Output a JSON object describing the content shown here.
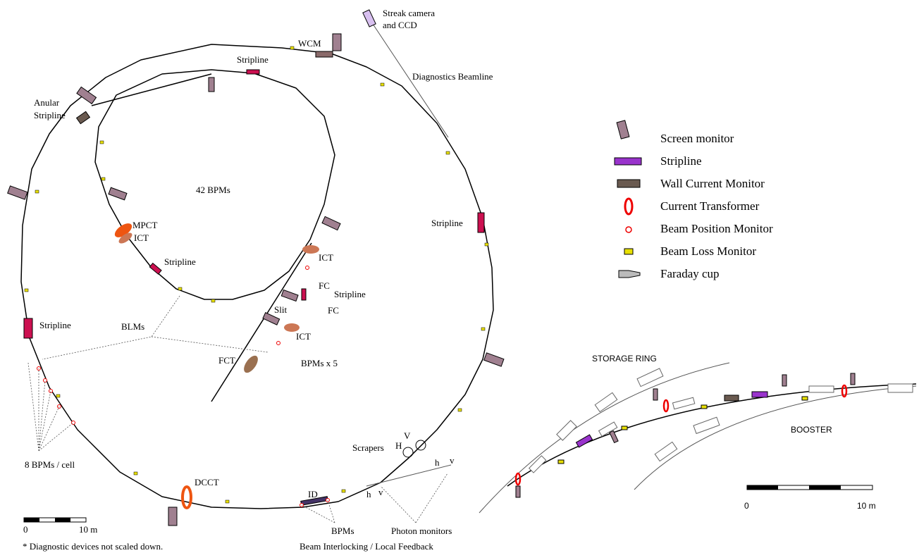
{
  "labels": [
    "Streak camera",
    "and CCD",
    "WCM",
    "Stripline",
    "Diagnostics Beamline",
    "Anular",
    "Stripline",
    "42 BPMs",
    "MPCT",
    "ICT",
    "Stripline",
    "Stripline",
    "ICT",
    "FC",
    "Stripline",
    "FC",
    "Slit",
    "ICT",
    "BLMs",
    "Stripline",
    "FCT",
    "BPMs x 5",
    "Scrapers",
    "V",
    "H",
    "h",
    "v",
    "h",
    "v",
    "8 BPMs / cell",
    "DCCT",
    "ID",
    "BPMs",
    "Photon monitors",
    "Beam Interlocking / Local Feedback"
  ],
  "legend": [
    "Screen monitor",
    "Stripline",
    "Wall Current Monitor",
    "Current Transformer",
    "Beam Position Monitor",
    "Beam Loss Monitor",
    "Faraday cup"
  ],
  "scale": {
    "start": "0",
    "end": "10 m"
  },
  "footnote": "* Diagnostic devices not scaled down.",
  "inset": {
    "storage_ring": "STORAGE RING",
    "booster": "BOOSTER",
    "scale_start": "0",
    "scale_end": "10 m"
  }
}
